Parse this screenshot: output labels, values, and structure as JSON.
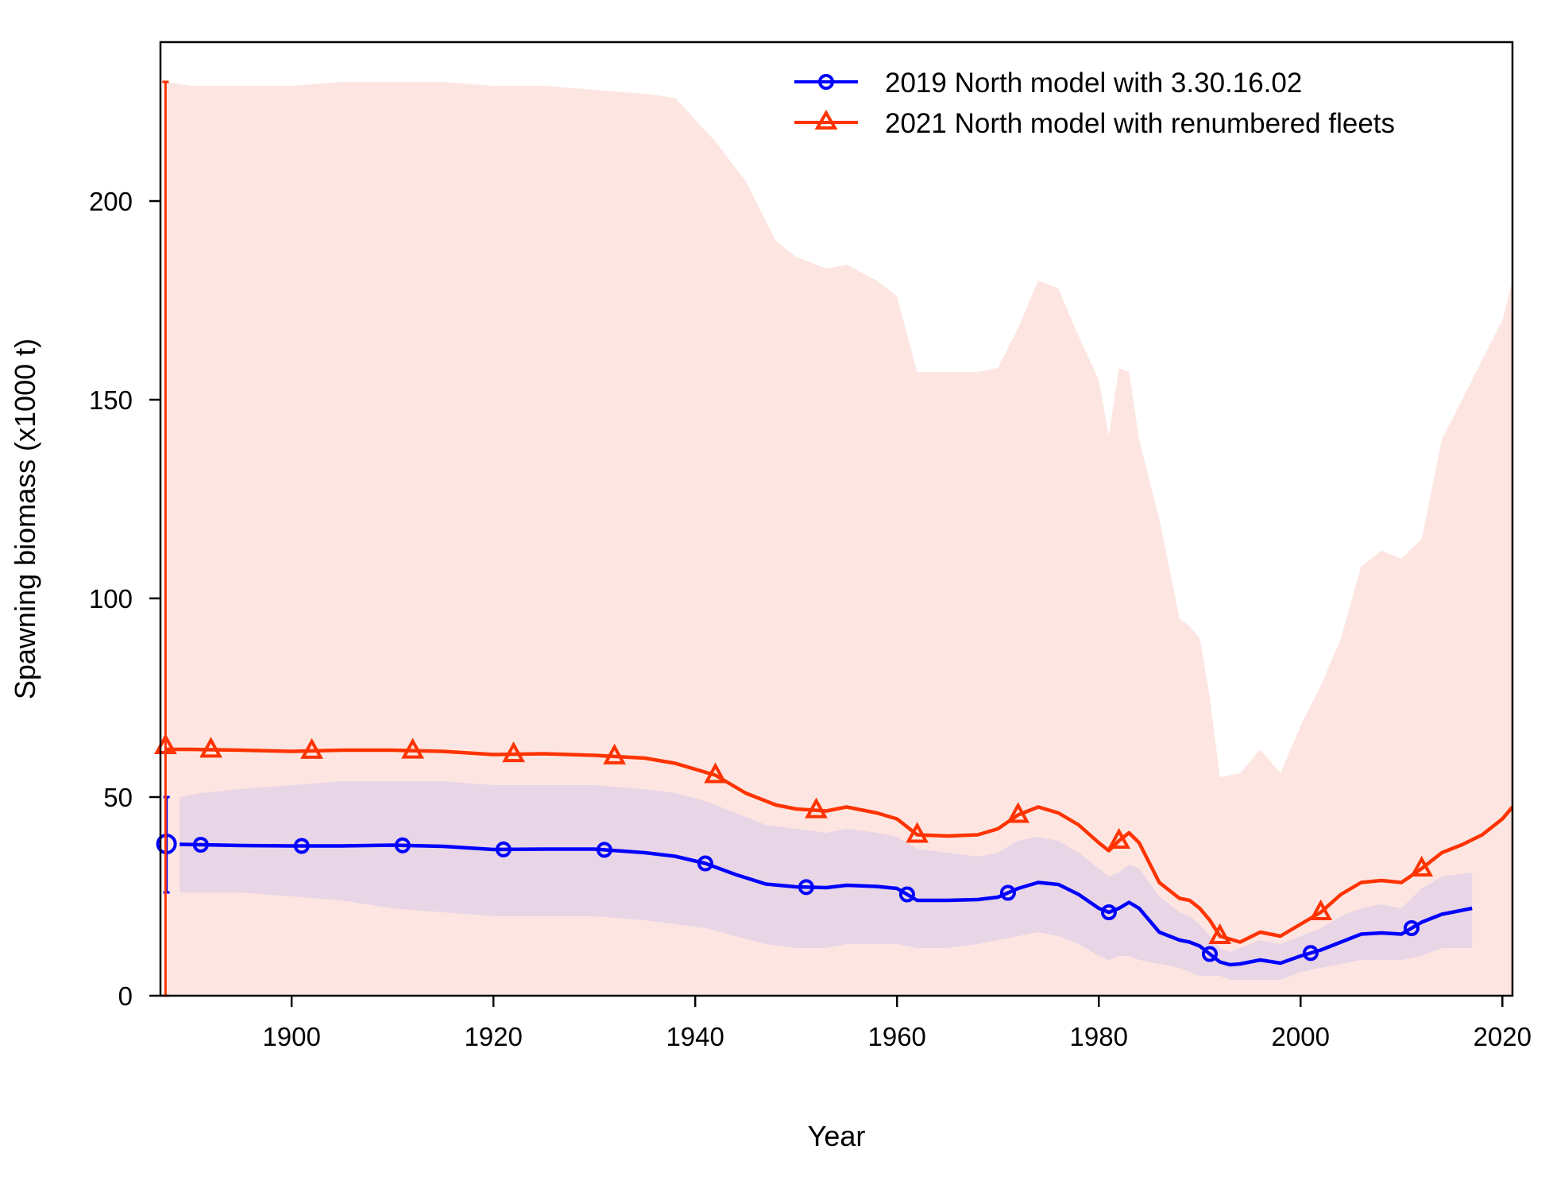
{
  "chart_data": {
    "type": "line",
    "xlabel": "Year",
    "ylabel": "Spawning biomass (x1000 t)",
    "xlim": [
      1887,
      2021
    ],
    "ylim": [
      0,
      240
    ],
    "x_ticks": [
      1900,
      1920,
      1940,
      1960,
      1980,
      2000,
      2020
    ],
    "y_ticks": [
      0,
      50,
      100,
      150,
      200
    ],
    "grid": false,
    "legend_position": "top-right",
    "series": [
      {
        "name": "2019 North model with 3.30.16.02",
        "color": "#0000ff",
        "marker": "circle",
        "band_color": "#e8d5e6",
        "initial_point": {
          "x": 1887.6,
          "y": 38.2,
          "lower": 26,
          "upper": 50
        },
        "x": [
          1888.9,
          1891,
          1895,
          1900,
          1905,
          1910,
          1915,
          1920,
          1925,
          1930,
          1935,
          1938,
          1941,
          1944,
          1947,
          1950,
          1953,
          1955,
          1958,
          1960,
          1962,
          1965,
          1968,
          1970,
          1972,
          1974,
          1976,
          1978,
          1980,
          1981,
          1982,
          1983,
          1984,
          1986,
          1988,
          1989,
          1990,
          1991,
          1992,
          1993,
          1994,
          1996,
          1998,
          2000,
          2002,
          2004,
          2006,
          2008,
          2010,
          2012,
          2014,
          2017
        ],
        "values": [
          38.1,
          38.0,
          37.8,
          37.7,
          37.7,
          37.9,
          37.6,
          36.8,
          36.9,
          36.9,
          36.0,
          35.1,
          33.3,
          30.5,
          28.1,
          27.4,
          27.2,
          27.8,
          27.5,
          27.0,
          24.0,
          24.0,
          24.2,
          24.8,
          27.0,
          28.5,
          28.0,
          25.5,
          22.0,
          21.0,
          22.0,
          23.5,
          22.0,
          16.0,
          14.0,
          13.5,
          12.5,
          10.5,
          8.5,
          7.8,
          8.0,
          9.0,
          8.2,
          10.0,
          11.5,
          13.5,
          15.5,
          15.8,
          15.5,
          18.5,
          20.5,
          22.0
        ],
        "band_lower": [
          26,
          26,
          26,
          25,
          24,
          22,
          21,
          20,
          20,
          20,
          19,
          18,
          17,
          15,
          13,
          12,
          12,
          13,
          13,
          13,
          12,
          12,
          13,
          14,
          15,
          16,
          15,
          13,
          10,
          9,
          10,
          10,
          9,
          8,
          7,
          6,
          5,
          5,
          5,
          4,
          4,
          4,
          4,
          6,
          7,
          8,
          9,
          9,
          9,
          10,
          12,
          12
        ],
        "band_upper": [
          50,
          51,
          52,
          53,
          54,
          54,
          54,
          53,
          53,
          53,
          52,
          51,
          49,
          46,
          43,
          42,
          41,
          42,
          41,
          40,
          37,
          36,
          35,
          36,
          39,
          40,
          39,
          36,
          32,
          30,
          31,
          33,
          32,
          25,
          21,
          20,
          18,
          15,
          12,
          11,
          12,
          14,
          13,
          15,
          17,
          20,
          22,
          23,
          22,
          27,
          30,
          31
        ],
        "marker_x": [
          1887.6,
          1891,
          1901,
          1911,
          1921,
          1931,
          1941,
          1951,
          1961,
          1971,
          1981,
          1991,
          2001,
          2011
        ]
      },
      {
        "name": "2021 North model with renumbered fleets",
        "color": "#ff3300",
        "marker": "triangle",
        "band_color": "#fde6e1",
        "x": [
          1887.5,
          1890,
          1895,
          1900,
          1905,
          1910,
          1915,
          1920,
          1925,
          1930,
          1935,
          1938,
          1942,
          1945,
          1948,
          1950,
          1953,
          1955,
          1958,
          1960,
          1962,
          1965,
          1968,
          1970,
          1972,
          1974,
          1976,
          1978,
          1980,
          1981,
          1982,
          1983,
          1984,
          1986,
          1988,
          1989,
          1990,
          1991,
          1992,
          1994,
          1996,
          1998,
          2000,
          2002,
          2004,
          2006,
          2008,
          2010,
          2012,
          2014,
          2016,
          2018,
          2020,
          2021
        ],
        "values": [
          62.0,
          62.0,
          61.8,
          61.5,
          61.8,
          61.8,
          61.5,
          60.7,
          60.9,
          60.5,
          59.8,
          58.5,
          55.5,
          51.0,
          48.0,
          47.0,
          46.5,
          47.5,
          46.0,
          44.5,
          40.5,
          40.2,
          40.5,
          42.0,
          45.5,
          47.5,
          46.0,
          43.0,
          38.5,
          36.5,
          39.0,
          41.0,
          38.5,
          28.5,
          24.5,
          24.0,
          22.0,
          19.0,
          15.0,
          13.5,
          16.0,
          15.0,
          18.0,
          21.0,
          25.5,
          28.5,
          29.0,
          28.5,
          32.0,
          36.0,
          38.0,
          40.5,
          44.5,
          47.5
        ],
        "band_upper": [
          230,
          229,
          229,
          229,
          230,
          230,
          230,
          229,
          229,
          228,
          227,
          226,
          215,
          205,
          190,
          186,
          183,
          184,
          180,
          176,
          157,
          157,
          157,
          158,
          168,
          180,
          178,
          166,
          155,
          141,
          158,
          157,
          140,
          120,
          95,
          93,
          90,
          75,
          55,
          56,
          62,
          56,
          68,
          78,
          90,
          108,
          112,
          110,
          115,
          140,
          150,
          160,
          170,
          180
        ],
        "band_lower": [
          0,
          0,
          0,
          0,
          0,
          0,
          0,
          0,
          0,
          0,
          0,
          0,
          0,
          0,
          0,
          0,
          0,
          0,
          0,
          0,
          0,
          0,
          0,
          0,
          0,
          0,
          0,
          0,
          0,
          0,
          0,
          0,
          0,
          0,
          0,
          0,
          0,
          0,
          0,
          0,
          0,
          0,
          0,
          0,
          0,
          0,
          0,
          0,
          0,
          0,
          0,
          0,
          0,
          0
        ],
        "initial_point": {
          "x": 1887.5,
          "y": 62.8,
          "lower": 0,
          "upper": 230
        },
        "marker_x": [
          1887.5,
          1892,
          1902,
          1912,
          1922,
          1932,
          1942,
          1952,
          1962,
          1972,
          1982,
          1992,
          2002,
          2012
        ]
      }
    ]
  }
}
